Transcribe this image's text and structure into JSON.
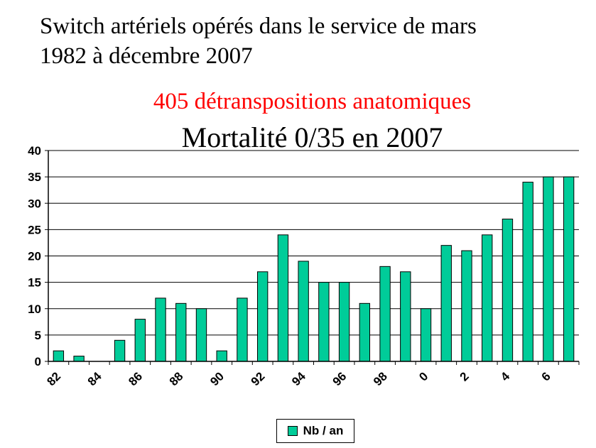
{
  "title_line1": "Switch artériels opérés dans le service de mars",
  "title_line2": "1982 à décembre  2007",
  "subtitle_red": "405 détranspositions anatomiques",
  "subtitle_black": "Mortalité 0/35 en 2007",
  "chart_data": {
    "type": "bar",
    "title": "",
    "xlabel": "",
    "ylabel": "",
    "ylim": [
      0,
      40
    ],
    "yticks": [
      0,
      5,
      10,
      15,
      20,
      25,
      30,
      35,
      40
    ],
    "grid": true,
    "legend_position": "bottom",
    "bar_color": "#00cc99",
    "categories": [
      "82",
      "83",
      "84",
      "85",
      "86",
      "87",
      "88",
      "89",
      "90",
      "91",
      "92",
      "93",
      "94",
      "95",
      "96",
      "97",
      "98",
      "99",
      "0",
      "1",
      "2",
      "3",
      "4",
      "5",
      "6",
      "7"
    ],
    "tick_labels_shown": [
      "82",
      "84",
      "86",
      "88",
      "90",
      "92",
      "94",
      "96",
      "98",
      "0",
      "2",
      "4",
      "6"
    ],
    "series": [
      {
        "name": "Nb / an",
        "values": [
          2,
          1,
          0,
          4,
          8,
          12,
          11,
          10,
          2,
          12,
          17,
          24,
          19,
          15,
          15,
          11,
          18,
          17,
          10,
          22,
          21,
          24,
          27,
          34,
          35,
          35
        ]
      }
    ]
  }
}
